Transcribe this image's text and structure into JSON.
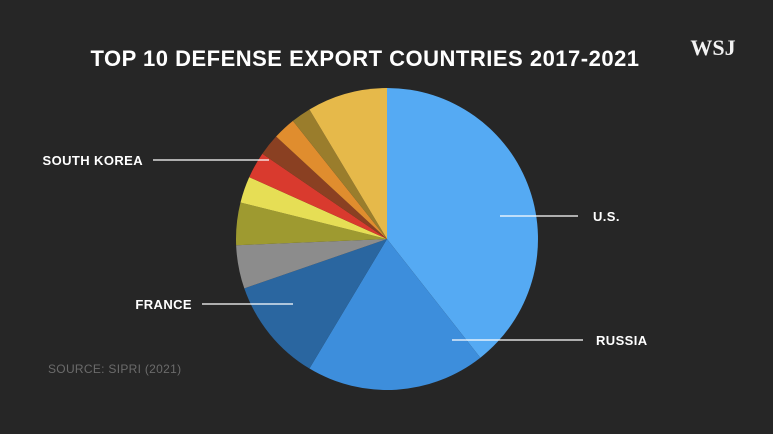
{
  "logo": "WSJ",
  "source": "SOURCE: SIPRI (2021)",
  "chart_data": {
    "type": "pie",
    "title": "TOP 10 DEFENSE EXPORT COUNTRIES 2017-2021",
    "start_angle_deg": 0,
    "direction": "clockwise",
    "slices": [
      {
        "label": "U.S.",
        "value": 39,
        "color": "#55aaf3",
        "labeled": true
      },
      {
        "label": "RUSSIA",
        "value": 19,
        "color": "#3d8edc",
        "labeled": true
      },
      {
        "label": "FRANCE",
        "value": 11,
        "color": "#2a66a0",
        "labeled": true
      },
      {
        "label": "",
        "value": 4.6,
        "color": "#8c8c8c",
        "labeled": false
      },
      {
        "label": "",
        "value": 4.5,
        "color": "#9e9a30",
        "labeled": false
      },
      {
        "label": "",
        "value": 2.8,
        "color": "#e6de55",
        "labeled": false
      },
      {
        "label": "SOUTH KOREA",
        "value": 2.8,
        "color": "#d93a2e",
        "labeled": true
      },
      {
        "label": "",
        "value": 2.3,
        "color": "#8a4022",
        "labeled": false
      },
      {
        "label": "",
        "value": 2.4,
        "color": "#e08d2e",
        "labeled": false
      },
      {
        "label": "",
        "value": 2.1,
        "color": "#9a7d2c",
        "labeled": false
      },
      {
        "label": "",
        "value": 8.5,
        "color": "#e6b94a",
        "labeled": false
      }
    ]
  }
}
